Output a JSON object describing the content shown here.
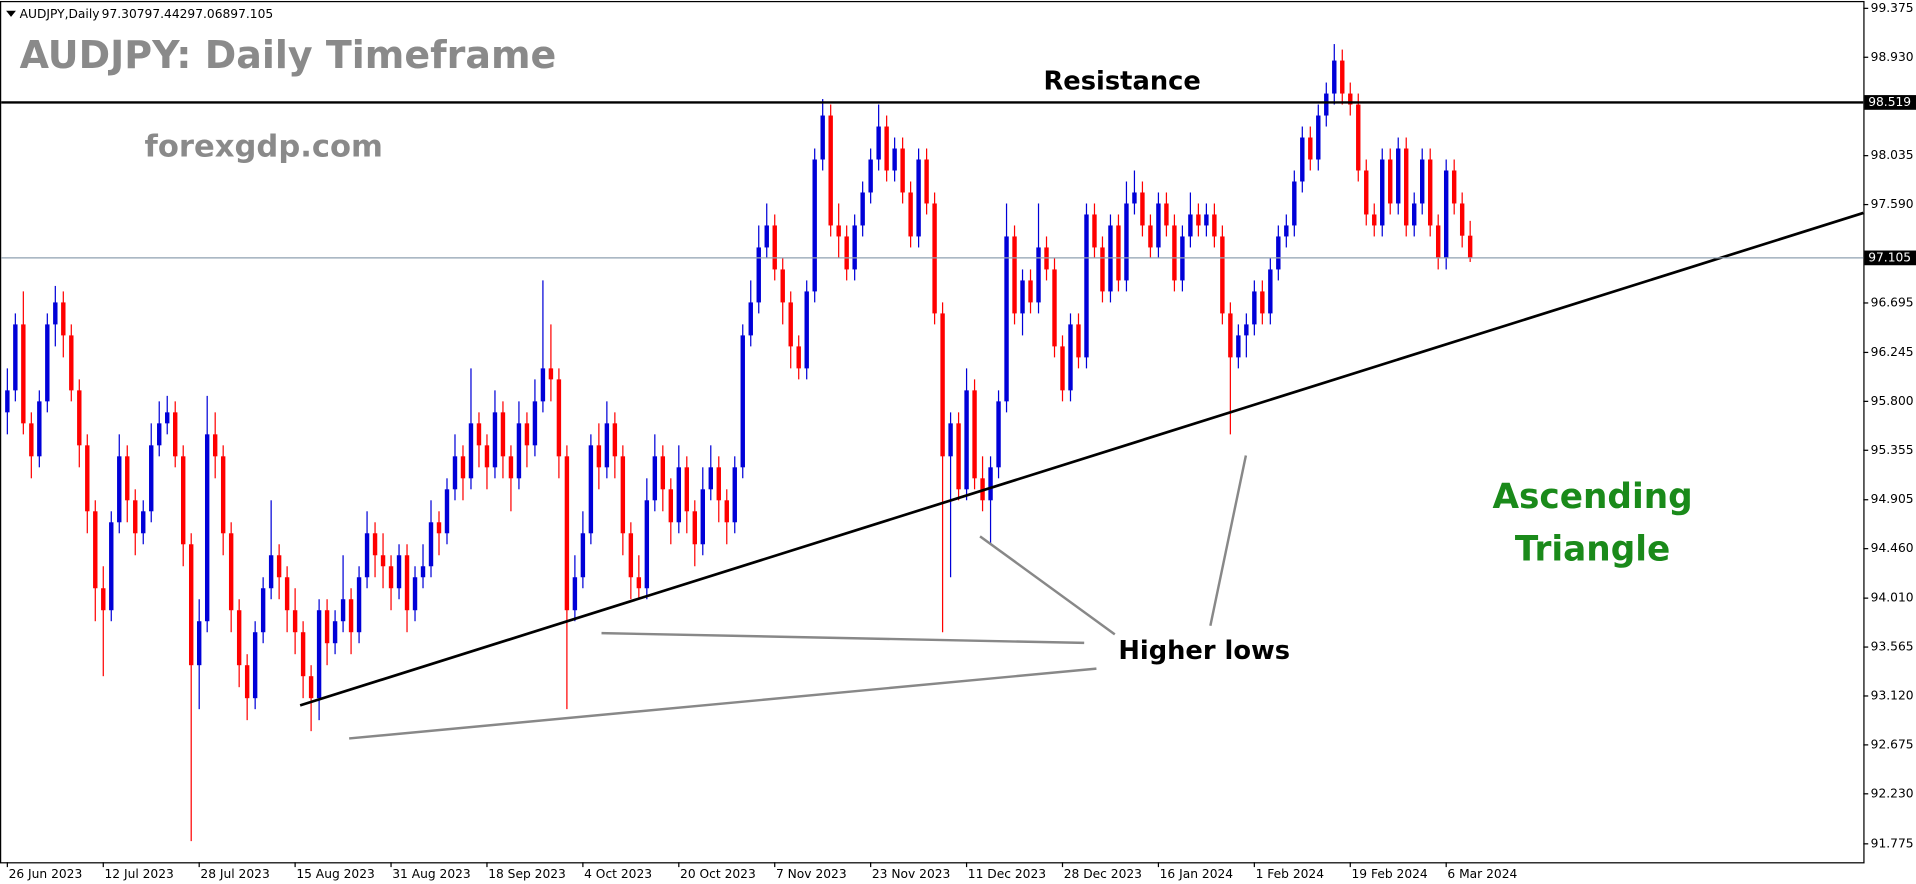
{
  "chart_data": {
    "type": "candlestick",
    "symbol": "AUDJPY,Daily",
    "title": "AUDJPY: Daily Timeframe",
    "subtitle": "forexgdp.com",
    "annotations": {
      "resistance_label": "Resistance",
      "resistance_level": 98.519,
      "higher_lows": "Higher lows",
      "pattern": [
        "Ascending",
        "Triangle"
      ]
    },
    "colors": {
      "up": "#0000d8",
      "down": "#ff0000"
    },
    "ylim": [
      91.608,
      99.442
    ],
    "yticks": [
      99.375,
      {
        "value": 98.93,
        "label": "98.930"
      },
      98.035,
      {
        "value": 97.59,
        "label": "97.590"
      },
      96.695,
      96.245,
      {
        "value": 95.8,
        "label": "95.800"
      },
      95.355,
      94.905,
      {
        "value": 94.46,
        "label": "94.460"
      },
      {
        "value": 94.01,
        "label": "94.010"
      },
      93.565,
      {
        "value": 93.12,
        "label": "93.120"
      },
      92.675,
      {
        "value": 92.23,
        "label": "92.230"
      },
      91.775
    ],
    "categories": [
      "26 Jun 2023",
      null,
      null,
      null,
      null,
      null,
      null,
      null,
      null,
      null,
      null,
      null,
      "12 Jul 2023",
      null,
      null,
      null,
      null,
      null,
      null,
      null,
      null,
      null,
      null,
      null,
      "28 Jul 2023",
      null,
      null,
      null,
      null,
      null,
      null,
      null,
      null,
      null,
      null,
      null,
      "15 Aug 2023",
      null,
      null,
      null,
      null,
      null,
      null,
      null,
      null,
      null,
      null,
      null,
      "31 Aug 2023",
      null,
      null,
      null,
      null,
      null,
      null,
      null,
      null,
      null,
      null,
      null,
      "18 Sep 2023",
      null,
      null,
      null,
      null,
      null,
      null,
      null,
      null,
      null,
      null,
      null,
      "4 Oct 2023",
      null,
      null,
      null,
      null,
      null,
      null,
      null,
      null,
      null,
      null,
      null,
      "20 Oct 2023",
      null,
      null,
      null,
      null,
      null,
      null,
      null,
      null,
      null,
      null,
      null,
      "7 Nov 2023",
      null,
      null,
      null,
      null,
      null,
      null,
      null,
      null,
      null,
      null,
      null,
      "23 Nov 2023",
      null,
      null,
      null,
      null,
      null,
      null,
      null,
      null,
      null,
      null,
      null,
      "11 Dec 2023",
      null,
      null,
      null,
      null,
      null,
      null,
      null,
      null,
      null,
      null,
      null,
      "28 Dec 2023",
      null,
      null,
      null,
      null,
      null,
      null,
      null,
      null,
      null,
      null,
      null,
      "16 Jan 2024",
      null,
      null,
      null,
      null,
      null,
      null,
      null,
      null,
      null,
      null,
      null,
      "1 Feb 2024",
      null,
      null,
      null,
      null,
      null,
      null,
      null,
      null,
      null,
      null,
      null,
      "19 Feb 2024",
      null,
      null,
      null,
      null,
      null,
      null,
      null,
      null,
      null,
      null,
      null,
      "6 Mar 2024",
      null,
      null,
      null
    ],
    "ohlc": [
      [
        95.7,
        96.1,
        95.5,
        95.9
      ],
      [
        95.9,
        96.6,
        95.8,
        96.5
      ],
      [
        96.5,
        96.8,
        95.5,
        95.6
      ],
      [
        95.6,
        95.7,
        95.1,
        95.3
      ],
      [
        95.3,
        95.9,
        95.2,
        95.8
      ],
      [
        95.8,
        96.6,
        95.7,
        96.5
      ],
      [
        96.5,
        96.85,
        96.3,
        96.7
      ],
      [
        96.7,
        96.8,
        96.2,
        96.4
      ],
      [
        96.4,
        96.5,
        95.8,
        95.9
      ],
      [
        95.9,
        96.0,
        95.2,
        95.4
      ],
      [
        95.4,
        95.5,
        94.6,
        94.8
      ],
      [
        94.8,
        94.9,
        93.8,
        94.1
      ],
      [
        94.1,
        94.3,
        93.3,
        93.9
      ],
      [
        93.9,
        94.8,
        93.8,
        94.7
      ],
      [
        94.7,
        95.5,
        94.6,
        95.3
      ],
      [
        95.3,
        95.4,
        94.7,
        94.9
      ],
      [
        94.9,
        95.0,
        94.4,
        94.6
      ],
      [
        94.6,
        94.9,
        94.5,
        94.8
      ],
      [
        94.8,
        95.6,
        94.7,
        95.4
      ],
      [
        95.4,
        95.8,
        95.3,
        95.6
      ],
      [
        95.6,
        95.85,
        95.5,
        95.7
      ],
      [
        95.7,
        95.8,
        95.2,
        95.3
      ],
      [
        95.3,
        95.4,
        94.3,
        94.5
      ],
      [
        94.5,
        94.6,
        91.8,
        93.4
      ],
      [
        93.4,
        94.0,
        93.0,
        93.8
      ],
      [
        93.8,
        95.85,
        93.7,
        95.5
      ],
      [
        95.5,
        95.7,
        95.1,
        95.3
      ],
      [
        95.3,
        95.4,
        94.4,
        94.6
      ],
      [
        94.6,
        94.7,
        93.7,
        93.9
      ],
      [
        93.9,
        94.0,
        93.2,
        93.4
      ],
      [
        93.4,
        93.5,
        92.9,
        93.1
      ],
      [
        93.1,
        93.8,
        93.0,
        93.7
      ],
      [
        93.7,
        94.2,
        93.6,
        94.1
      ],
      [
        94.1,
        94.9,
        94.0,
        94.4
      ],
      [
        94.4,
        94.5,
        94.0,
        94.2
      ],
      [
        94.2,
        94.3,
        93.7,
        93.9
      ],
      [
        93.9,
        94.1,
        93.5,
        93.7
      ],
      [
        93.7,
        93.8,
        93.1,
        93.3
      ],
      [
        93.3,
        93.4,
        92.8,
        93.1
      ],
      [
        93.1,
        94.0,
        92.9,
        93.9
      ],
      [
        93.9,
        94.0,
        93.4,
        93.6
      ],
      [
        93.6,
        93.9,
        93.5,
        93.8
      ],
      [
        93.8,
        94.4,
        93.7,
        94.0
      ],
      [
        94.0,
        94.1,
        93.5,
        93.7
      ],
      [
        93.7,
        94.3,
        93.6,
        94.2
      ],
      [
        94.2,
        94.8,
        94.1,
        94.6
      ],
      [
        94.6,
        94.7,
        94.2,
        94.4
      ],
      [
        94.4,
        94.6,
        94.1,
        94.3
      ],
      [
        94.3,
        94.4,
        93.9,
        94.1
      ],
      [
        94.1,
        94.5,
        94.0,
        94.4
      ],
      [
        94.4,
        94.5,
        93.7,
        93.9
      ],
      [
        93.9,
        94.3,
        93.8,
        94.2
      ],
      [
        94.2,
        94.5,
        94.1,
        94.3
      ],
      [
        94.3,
        94.9,
        94.2,
        94.7
      ],
      [
        94.7,
        94.8,
        94.4,
        94.6
      ],
      [
        94.6,
        95.1,
        94.5,
        95.0
      ],
      [
        95.0,
        95.5,
        94.9,
        95.3
      ],
      [
        95.3,
        95.4,
        94.9,
        95.1
      ],
      [
        95.1,
        96.1,
        95.0,
        95.6
      ],
      [
        95.6,
        95.7,
        95.2,
        95.4
      ],
      [
        95.4,
        95.5,
        95.0,
        95.2
      ],
      [
        95.2,
        95.9,
        95.1,
        95.7
      ],
      [
        95.7,
        95.8,
        95.1,
        95.3
      ],
      [
        95.3,
        95.4,
        94.8,
        95.1
      ],
      [
        95.1,
        95.8,
        95.0,
        95.6
      ],
      [
        95.6,
        95.7,
        95.2,
        95.4
      ],
      [
        95.4,
        96.0,
        95.3,
        95.8
      ],
      [
        95.8,
        96.9,
        95.7,
        96.1
      ],
      [
        96.1,
        96.5,
        95.8,
        96.0
      ],
      [
        96.0,
        96.1,
        95.1,
        95.3
      ],
      [
        95.3,
        95.4,
        93.0,
        93.9
      ],
      [
        93.9,
        94.4,
        93.8,
        94.2
      ],
      [
        94.2,
        94.8,
        94.1,
        94.6
      ],
      [
        94.6,
        95.5,
        94.5,
        95.4
      ],
      [
        95.4,
        95.6,
        95.0,
        95.2
      ],
      [
        95.2,
        95.8,
        95.1,
        95.6
      ],
      [
        95.6,
        95.7,
        95.1,
        95.3
      ],
      [
        95.3,
        95.4,
        94.4,
        94.6
      ],
      [
        94.6,
        94.7,
        94.0,
        94.2
      ],
      [
        94.2,
        94.4,
        94.0,
        94.1
      ],
      [
        94.1,
        95.1,
        94.0,
        94.9
      ],
      [
        94.9,
        95.5,
        94.8,
        95.3
      ],
      [
        95.3,
        95.4,
        94.8,
        95.0
      ],
      [
        95.0,
        95.1,
        94.5,
        94.7
      ],
      [
        94.7,
        95.4,
        94.6,
        95.2
      ],
      [
        95.2,
        95.3,
        94.6,
        94.8
      ],
      [
        94.8,
        94.9,
        94.3,
        94.5
      ],
      [
        94.5,
        95.2,
        94.4,
        95.0
      ],
      [
        95.0,
        95.4,
        94.9,
        95.2
      ],
      [
        95.2,
        95.3,
        94.7,
        94.9
      ],
      [
        94.9,
        95.0,
        94.5,
        94.7
      ],
      [
        94.7,
        95.3,
        94.6,
        95.2
      ],
      [
        95.2,
        96.5,
        95.1,
        96.4
      ],
      [
        96.4,
        96.9,
        96.3,
        96.7
      ],
      [
        96.7,
        97.4,
        96.6,
        97.2
      ],
      [
        97.2,
        97.6,
        97.1,
        97.4
      ],
      [
        97.4,
        97.5,
        96.9,
        97.0
      ],
      [
        97.0,
        97.1,
        96.5,
        96.7
      ],
      [
        96.7,
        96.8,
        96.1,
        96.3
      ],
      [
        96.3,
        96.4,
        96.0,
        96.1
      ],
      [
        96.1,
        96.9,
        96.0,
        96.8
      ],
      [
        96.8,
        98.1,
        96.7,
        98.0
      ],
      [
        98.0,
        98.55,
        97.9,
        98.4
      ],
      [
        98.4,
        98.5,
        97.3,
        97.4
      ],
      [
        97.4,
        97.6,
        97.1,
        97.3
      ],
      [
        97.3,
        97.4,
        96.9,
        97.0
      ],
      [
        97.0,
        97.5,
        96.9,
        97.4
      ],
      [
        97.4,
        97.8,
        97.3,
        97.7
      ],
      [
        97.7,
        98.1,
        97.6,
        98.0
      ],
      [
        98.0,
        98.5,
        97.9,
        98.3
      ],
      [
        98.3,
        98.4,
        97.8,
        97.9
      ],
      [
        97.9,
        98.2,
        97.8,
        98.1
      ],
      [
        98.1,
        98.2,
        97.6,
        97.7
      ],
      [
        97.7,
        97.8,
        97.2,
        97.3
      ],
      [
        97.3,
        98.1,
        97.2,
        98.0
      ],
      [
        98.0,
        98.1,
        97.5,
        97.6
      ],
      [
        97.6,
        97.7,
        96.5,
        96.6
      ],
      [
        96.6,
        96.7,
        93.7,
        95.3
      ],
      [
        95.3,
        95.7,
        94.2,
        95.6
      ],
      [
        95.6,
        95.7,
        94.9,
        95.0
      ],
      [
        95.0,
        96.1,
        94.9,
        95.9
      ],
      [
        95.9,
        96.0,
        95.0,
        95.1
      ],
      [
        95.1,
        95.3,
        94.8,
        94.9
      ],
      [
        94.9,
        95.3,
        94.5,
        95.2
      ],
      [
        95.2,
        95.9,
        95.1,
        95.8
      ],
      [
        95.8,
        97.6,
        95.7,
        97.3
      ],
      [
        97.3,
        97.4,
        96.5,
        96.6
      ],
      [
        96.6,
        97.0,
        96.4,
        96.9
      ],
      [
        96.9,
        97.0,
        96.6,
        96.7
      ],
      [
        96.7,
        97.6,
        96.6,
        97.2
      ],
      [
        97.2,
        97.3,
        96.9,
        97.0
      ],
      [
        97.0,
        97.1,
        96.2,
        96.3
      ],
      [
        96.3,
        96.4,
        95.8,
        95.9
      ],
      [
        95.9,
        96.6,
        95.8,
        96.5
      ],
      [
        96.5,
        96.6,
        96.1,
        96.2
      ],
      [
        96.2,
        97.6,
        96.1,
        97.5
      ],
      [
        97.5,
        97.6,
        97.1,
        97.2
      ],
      [
        97.2,
        97.3,
        96.7,
        96.8
      ],
      [
        96.8,
        97.5,
        96.7,
        97.4
      ],
      [
        97.4,
        97.5,
        96.8,
        96.9
      ],
      [
        96.9,
        97.8,
        96.8,
        97.6
      ],
      [
        97.6,
        97.9,
        97.5,
        97.7
      ],
      [
        97.7,
        97.8,
        97.3,
        97.4
      ],
      [
        97.4,
        97.5,
        97.1,
        97.2
      ],
      [
        97.2,
        97.7,
        97.1,
        97.6
      ],
      [
        97.6,
        97.7,
        97.3,
        97.4
      ],
      [
        97.4,
        97.5,
        96.8,
        96.9
      ],
      [
        96.9,
        97.4,
        96.8,
        97.3
      ],
      [
        97.3,
        97.7,
        97.2,
        97.5
      ],
      [
        97.5,
        97.6,
        97.3,
        97.4
      ],
      [
        97.4,
        97.6,
        97.3,
        97.5
      ],
      [
        97.5,
        97.6,
        97.2,
        97.3
      ],
      [
        97.3,
        97.4,
        96.5,
        96.6
      ],
      [
        96.6,
        96.7,
        95.5,
        96.2
      ],
      [
        96.2,
        96.5,
        96.1,
        96.4
      ],
      [
        96.4,
        96.6,
        96.2,
        96.5
      ],
      [
        96.5,
        96.9,
        96.4,
        96.8
      ],
      [
        96.8,
        96.9,
        96.5,
        96.6
      ],
      [
        96.6,
        97.1,
        96.5,
        97.0
      ],
      [
        97.0,
        97.4,
        96.9,
        97.3
      ],
      [
        97.3,
        97.5,
        97.2,
        97.4
      ],
      [
        97.4,
        97.9,
        97.3,
        97.8
      ],
      [
        97.8,
        98.3,
        97.7,
        98.2
      ],
      [
        98.2,
        98.3,
        97.9,
        98.0
      ],
      [
        98.0,
        98.5,
        97.9,
        98.4
      ],
      [
        98.4,
        98.7,
        98.3,
        98.6
      ],
      [
        98.6,
        99.05,
        98.5,
        98.9
      ],
      [
        98.9,
        99.0,
        98.5,
        98.6
      ],
      [
        98.6,
        98.7,
        98.4,
        98.5
      ],
      [
        98.5,
        98.6,
        97.8,
        97.9
      ],
      [
        97.9,
        98.0,
        97.4,
        97.5
      ],
      [
        97.5,
        97.6,
        97.3,
        97.4
      ],
      [
        97.4,
        98.1,
        97.3,
        98.0
      ],
      [
        98.0,
        98.1,
        97.5,
        97.6
      ],
      [
        97.6,
        98.2,
        97.5,
        98.1
      ],
      [
        98.1,
        98.2,
        97.3,
        97.4
      ],
      [
        97.4,
        97.7,
        97.3,
        97.6
      ],
      [
        97.6,
        98.1,
        97.5,
        98.0
      ],
      [
        98.0,
        98.1,
        97.3,
        97.4
      ],
      [
        97.4,
        97.5,
        97.0,
        97.1
      ],
      [
        97.1,
        98.0,
        97.0,
        97.9
      ],
      [
        97.9,
        98.0,
        97.5,
        97.6
      ],
      [
        97.6,
        97.7,
        97.2,
        97.307
      ],
      [
        97.307,
        97.442,
        97.068,
        97.105
      ]
    ]
  }
}
